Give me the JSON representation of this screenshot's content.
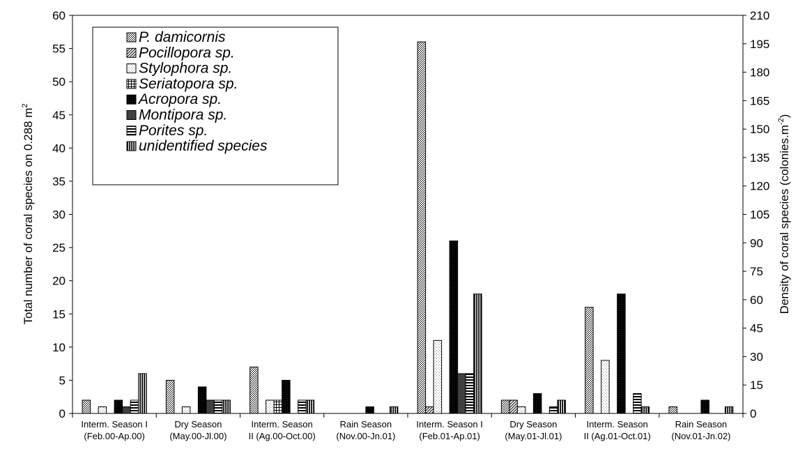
{
  "chart_data": {
    "type": "bar",
    "ylabel": "Total number of coral species on 0.288 m",
    "ylabel_sup": "2",
    "y2label": "Density of coral species (colonies.m",
    "y2label_sup": "-2",
    "y2label_end": ")",
    "ylim": [
      0,
      60
    ],
    "y_ticks": [
      "0",
      "5",
      "10",
      "15",
      "20",
      "25",
      "30",
      "35",
      "40",
      "45",
      "50",
      "55",
      "60"
    ],
    "y2lim": [
      0,
      210
    ],
    "y2_ticks": [
      "0",
      "15",
      "30",
      "45",
      "60",
      "75",
      "90",
      "105",
      "120",
      "135",
      "150",
      "165",
      "180",
      "195",
      "210"
    ],
    "categories": [
      [
        "Interm. Season I",
        "(Feb.00-Ap.00)"
      ],
      [
        "Dry Season",
        "(May.00-Jl.00)"
      ],
      [
        "Interm. Season",
        "II (Ag.00-Oct.00)"
      ],
      [
        "Rain Season",
        "(Nov.00-Jn.01)"
      ],
      [
        "Interm. Season I",
        "(Feb.01-Ap.01)"
      ],
      [
        "Dry Season",
        "(May.01-Jl.01)"
      ],
      [
        "Interm. Season",
        "II (Ag.01-Oct.01)"
      ],
      [
        "Rain Season",
        "(Nov.01-Jn.02)"
      ]
    ],
    "series": [
      {
        "name": "P. damicornis",
        "values": [
          2,
          5,
          7,
          0,
          56,
          2,
          16,
          1
        ]
      },
      {
        "name": "Pocillopora sp.",
        "values": [
          0,
          0,
          0,
          0,
          1,
          2,
          0,
          0
        ]
      },
      {
        "name": "Stylophora sp.",
        "values": [
          1,
          1,
          2,
          0,
          11,
          1,
          8,
          0
        ]
      },
      {
        "name": "Seriatopora sp.",
        "values": [
          0,
          0,
          2,
          0,
          0,
          0,
          0,
          0
        ]
      },
      {
        "name": "Acropora sp.",
        "values": [
          2,
          4,
          5,
          1,
          26,
          3,
          18,
          2
        ]
      },
      {
        "name": "Montipora sp.",
        "values": [
          1,
          2,
          0,
          0,
          6,
          0,
          0,
          0
        ]
      },
      {
        "name": "Porites sp.",
        "values": [
          2,
          2,
          2,
          0,
          6,
          1,
          3,
          0
        ]
      },
      {
        "name": "unidentified species",
        "values": [
          6,
          2,
          2,
          1,
          18,
          2,
          1,
          1
        ]
      }
    ],
    "legend_position": "top-left"
  }
}
